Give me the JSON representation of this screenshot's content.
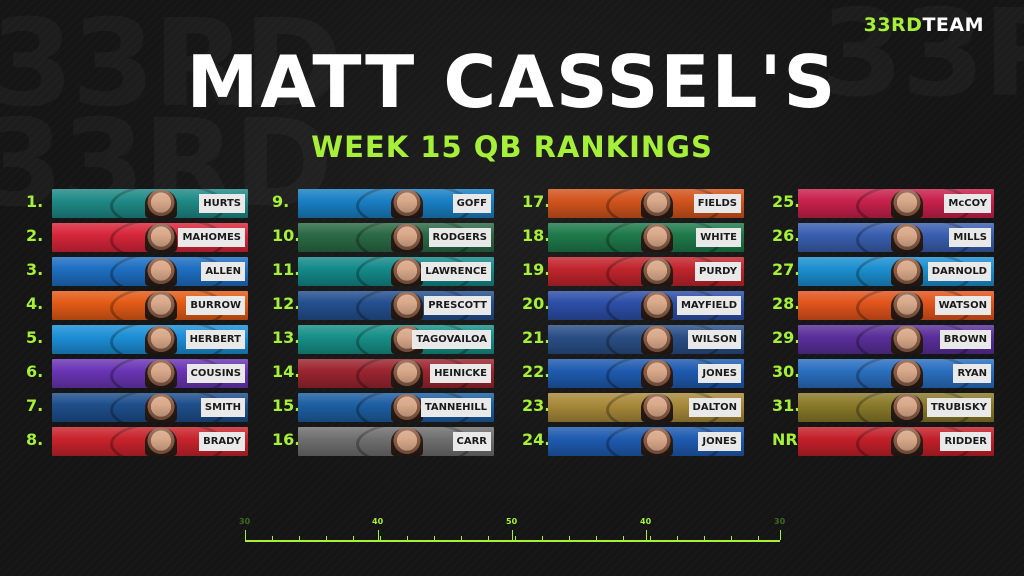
{
  "brand": {
    "part1": "33RD",
    "part2": "TEAM"
  },
  "title": "MATT CASSEL'S",
  "subtitle": "WEEK 15 QB RANKINGS",
  "colors": {
    "accent": "#a6f03a",
    "title": "#ffffff",
    "background": "#151515"
  },
  "columns": [
    [
      {
        "rank": "1.",
        "name": "HURTS",
        "team_color": "#1f8a86"
      },
      {
        "rank": "2.",
        "name": "MAHOMES",
        "team_color": "#d8263a"
      },
      {
        "rank": "3.",
        "name": "ALLEN",
        "team_color": "#1e6fc2"
      },
      {
        "rank": "4.",
        "name": "BURROW",
        "team_color": "#e35b16"
      },
      {
        "rank": "5.",
        "name": "HERBERT",
        "team_color": "#1c8fd6"
      },
      {
        "rank": "6.",
        "name": "COUSINS",
        "team_color": "#6a35b5"
      },
      {
        "rank": "7.",
        "name": "SMITH",
        "team_color": "#1e4f8c"
      },
      {
        "rank": "8.",
        "name": "BRADY",
        "team_color": "#c9242c"
      }
    ],
    [
      {
        "rank": "9.",
        "name": "GOFF",
        "team_color": "#1a7fc4"
      },
      {
        "rank": "10.",
        "name": "RODGERS",
        "team_color": "#2b6a46"
      },
      {
        "rank": "11.",
        "name": "LAWRENCE",
        "team_color": "#148a8a"
      },
      {
        "rank": "12.",
        "name": "PRESCOTT",
        "team_color": "#24508f"
      },
      {
        "rank": "13.",
        "name": "TAGOVAILOA",
        "team_color": "#179087"
      },
      {
        "rank": "14.",
        "name": "HEINICKE",
        "team_color": "#9b2530"
      },
      {
        "rank": "15.",
        "name": "TANNEHILL",
        "team_color": "#1d5fa3"
      },
      {
        "rank": "16.",
        "name": "CARR",
        "team_color": "#6f6f6f"
      }
    ],
    [
      {
        "rank": "17.",
        "name": "FIELDS",
        "team_color": "#d2541d"
      },
      {
        "rank": "18.",
        "name": "WHITE",
        "team_color": "#1f7a4a"
      },
      {
        "rank": "19.",
        "name": "PURDY",
        "team_color": "#c1252d"
      },
      {
        "rank": "20.",
        "name": "MAYFIELD",
        "team_color": "#2d4fa8"
      },
      {
        "rank": "21.",
        "name": "WILSON",
        "team_color": "#2a4f86"
      },
      {
        "rank": "22.",
        "name": "JONES",
        "team_color": "#1f5bb0"
      },
      {
        "rank": "23.",
        "name": "DALTON",
        "team_color": "#a8893a"
      },
      {
        "rank": "24.",
        "name": "JONES",
        "team_color": "#1f5bb0"
      }
    ],
    [
      {
        "rank": "25.",
        "name": "McCOY",
        "team_color": "#c8214c"
      },
      {
        "rank": "26.",
        "name": "MILLS",
        "team_color": "#3a5fb0"
      },
      {
        "rank": "27.",
        "name": "DARNOLD",
        "team_color": "#1c8fd0"
      },
      {
        "rank": "28.",
        "name": "WATSON",
        "team_color": "#e2541c"
      },
      {
        "rank": "29.",
        "name": "BROWN",
        "team_color": "#5a2f9a"
      },
      {
        "rank": "30.",
        "name": "RYAN",
        "team_color": "#2a6fc0"
      },
      {
        "rank": "31.",
        "name": "TRUBISKY",
        "team_color": "#8a7a2a"
      },
      {
        "rank": "NR",
        "name": "RIDDER",
        "team_color": "#c4202a"
      }
    ]
  ],
  "yard_labels": [
    "30",
    "40",
    "50",
    "40",
    "30"
  ],
  "ghost_text": "33RD"
}
